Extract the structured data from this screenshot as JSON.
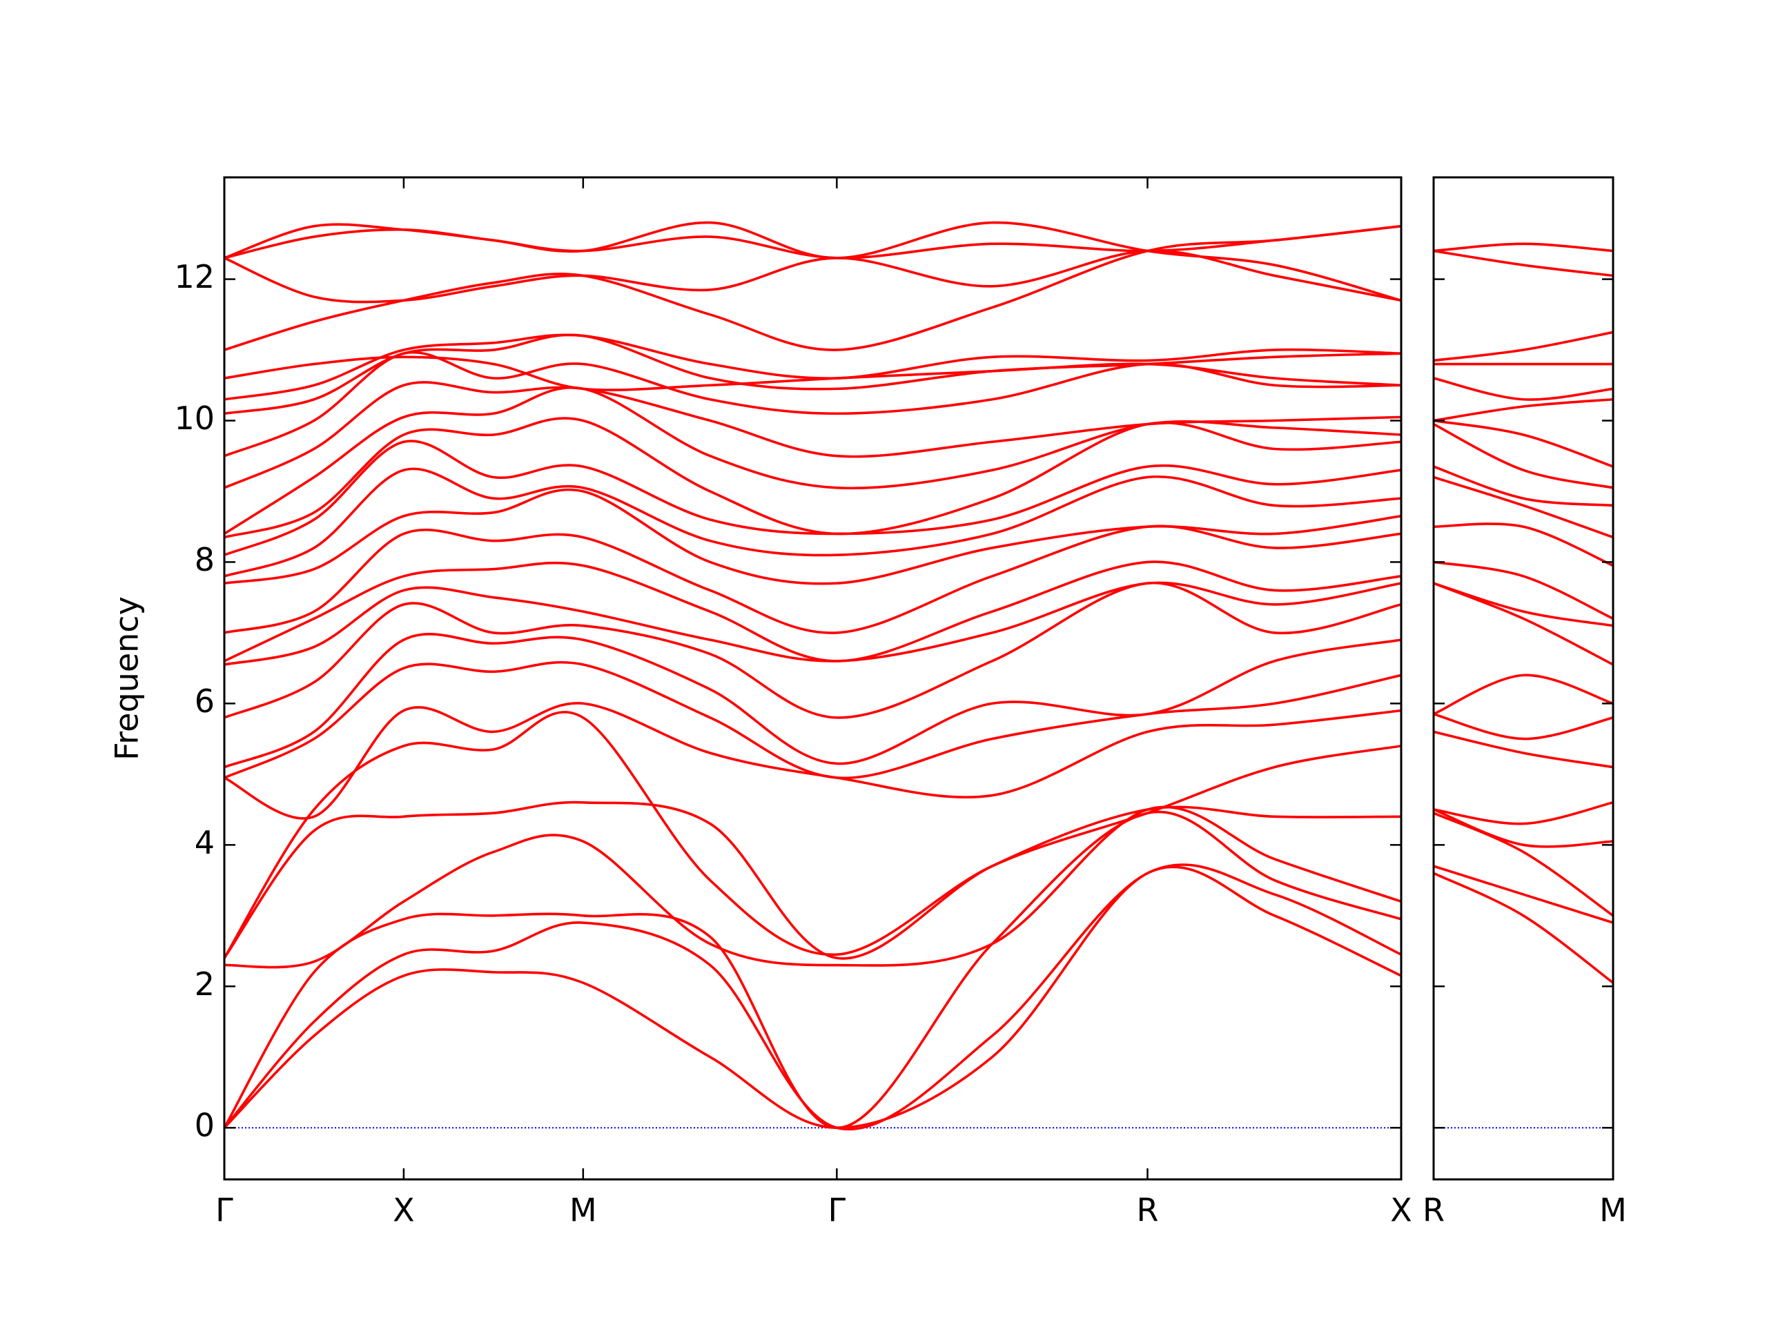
{
  "chart_data": [
    {
      "type": "line",
      "ylabel": "Frequency",
      "color": "#ff0000",
      "hline": 0,
      "hline_color": "#0000ff",
      "x": [
        0,
        0.25,
        0.5,
        0.75,
        1.0,
        1.354,
        1.707,
        2.14,
        2.573,
        2.927,
        3.28
      ],
      "xlim": [
        0,
        3.28
      ],
      "ylim": [
        -0.73,
        13.44
      ],
      "xticks": [
        {
          "value": 0,
          "label": "Γ"
        },
        {
          "value": 0.5,
          "label": "X"
        },
        {
          "value": 1.0,
          "label": "M"
        },
        {
          "value": 1.707,
          "label": "Γ"
        },
        {
          "value": 2.573,
          "label": "R"
        },
        {
          "value": 3.28,
          "label": "X"
        }
      ],
      "yticks": [
        0,
        2,
        4,
        6,
        8,
        10,
        12
      ],
      "series": [
        {
          "values": [
            0,
            1.3,
            2.15,
            2.2,
            2.05,
            1.0,
            0,
            1.0,
            3.6,
            3.0,
            2.15
          ]
        },
        {
          "values": [
            0,
            1.5,
            2.45,
            2.5,
            2.9,
            2.3,
            0,
            1.3,
            3.6,
            3.3,
            2.45
          ]
        },
        {
          "values": [
            0,
            2.2,
            2.95,
            3.0,
            3.0,
            2.7,
            0,
            2.6,
            4.45,
            3.5,
            2.95
          ]
        },
        {
          "values": [
            2.3,
            2.35,
            3.2,
            3.9,
            4.05,
            2.6,
            2.3,
            2.6,
            4.5,
            3.8,
            3.2
          ]
        },
        {
          "values": [
            2.4,
            4.2,
            4.4,
            4.45,
            4.6,
            4.3,
            2.4,
            3.7,
            4.5,
            4.4,
            4.4
          ]
        },
        {
          "values": [
            2.4,
            4.5,
            5.4,
            5.35,
            5.8,
            3.5,
            2.45,
            3.7,
            4.45,
            5.1,
            5.4
          ]
        },
        {
          "values": [
            4.95,
            4.4,
            5.9,
            5.6,
            6.0,
            5.3,
            4.95,
            4.7,
            5.6,
            5.7,
            5.9
          ]
        },
        {
          "values": [
            4.95,
            5.5,
            6.5,
            6.45,
            6.55,
            5.8,
            4.95,
            5.5,
            5.85,
            6.0,
            6.4
          ]
        },
        {
          "values": [
            5.1,
            5.6,
            6.9,
            6.85,
            6.9,
            6.2,
            5.15,
            6.0,
            5.85,
            6.6,
            6.9
          ]
        },
        {
          "values": [
            5.8,
            6.3,
            7.4,
            7.0,
            7.1,
            6.7,
            5.8,
            6.6,
            7.7,
            7.0,
            7.4
          ]
        },
        {
          "values": [
            6.55,
            6.8,
            7.6,
            7.5,
            7.3,
            6.9,
            6.6,
            7.0,
            7.7,
            7.4,
            7.7
          ]
        },
        {
          "values": [
            6.6,
            7.2,
            7.8,
            7.9,
            7.95,
            7.3,
            6.6,
            7.3,
            8.0,
            7.6,
            7.8
          ]
        },
        {
          "values": [
            7.0,
            7.3,
            8.4,
            8.3,
            8.35,
            7.6,
            7.0,
            7.8,
            8.5,
            8.2,
            8.4
          ]
        },
        {
          "values": [
            7.7,
            7.9,
            8.65,
            8.7,
            9.0,
            8.0,
            7.7,
            8.2,
            8.5,
            8.4,
            8.65
          ]
        },
        {
          "values": [
            7.8,
            8.2,
            9.3,
            8.9,
            9.05,
            8.3,
            8.1,
            8.4,
            9.2,
            8.8,
            8.9
          ]
        },
        {
          "values": [
            8.1,
            8.6,
            9.7,
            9.2,
            9.35,
            8.6,
            8.4,
            8.6,
            9.35,
            9.1,
            9.3
          ]
        },
        {
          "values": [
            8.35,
            8.7,
            9.8,
            9.8,
            10.0,
            9.0,
            8.4,
            8.9,
            9.95,
            9.6,
            9.7
          ]
        },
        {
          "values": [
            8.4,
            9.2,
            10.05,
            10.1,
            10.45,
            9.5,
            9.05,
            9.3,
            9.95,
            9.9,
            9.8
          ]
        },
        {
          "values": [
            9.05,
            9.6,
            10.5,
            10.4,
            10.45,
            10.0,
            9.5,
            9.7,
            9.95,
            10.0,
            10.05
          ]
        },
        {
          "values": [
            9.5,
            10.0,
            10.95,
            10.6,
            10.8,
            10.3,
            10.1,
            10.3,
            10.8,
            10.5,
            10.5
          ]
        },
        {
          "values": [
            10.1,
            10.3,
            10.95,
            11.0,
            11.2,
            10.6,
            10.45,
            10.7,
            10.8,
            10.9,
            10.95
          ]
        },
        {
          "values": [
            10.3,
            10.5,
            11.0,
            11.1,
            11.2,
            10.8,
            10.6,
            10.9,
            10.85,
            11.0,
            10.95
          ]
        },
        {
          "values": [
            10.6,
            10.8,
            10.9,
            10.8,
            10.45,
            10.5,
            10.6,
            10.7,
            10.8,
            10.6,
            10.5
          ]
        },
        {
          "values": [
            11.0,
            11.4,
            11.7,
            11.95,
            12.05,
            11.5,
            11.0,
            11.6,
            12.4,
            12.55,
            12.75
          ]
        },
        {
          "values": [
            12.3,
            11.75,
            11.7,
            11.9,
            12.05,
            11.85,
            12.3,
            11.9,
            12.4,
            12.05,
            11.7
          ]
        },
        {
          "values": [
            12.3,
            12.6,
            12.7,
            12.55,
            12.4,
            12.6,
            12.3,
            12.5,
            12.4,
            12.55,
            12.75
          ]
        },
        {
          "values": [
            12.3,
            12.75,
            12.7,
            12.55,
            12.4,
            12.8,
            12.3,
            12.8,
            12.4,
            12.2,
            11.7
          ]
        }
      ]
    },
    {
      "type": "line",
      "color": "#ff0000",
      "hline": 0,
      "hline_color": "#0000ff",
      "x": [
        0,
        0.25,
        0.5
      ],
      "xlim": [
        0,
        0.5
      ],
      "ylim": [
        -0.73,
        13.44
      ],
      "xticks": [
        {
          "value": 0,
          "label": "R"
        },
        {
          "value": 0.5,
          "label": "M"
        }
      ],
      "series": [
        {
          "values": [
            3.6,
            3.0,
            2.05
          ]
        },
        {
          "values": [
            3.7,
            3.3,
            2.9
          ]
        },
        {
          "values": [
            4.45,
            3.9,
            3.0
          ]
        },
        {
          "values": [
            4.5,
            4.0,
            4.05
          ]
        },
        {
          "values": [
            4.5,
            4.3,
            4.6
          ]
        },
        {
          "values": [
            5.6,
            5.3,
            5.1
          ]
        },
        {
          "values": [
            5.85,
            5.5,
            5.8
          ]
        },
        {
          "values": [
            5.85,
            6.4,
            6.0
          ]
        },
        {
          "values": [
            7.7,
            7.2,
            6.55
          ]
        },
        {
          "values": [
            7.7,
            7.3,
            7.1
          ]
        },
        {
          "values": [
            8.0,
            7.8,
            7.2
          ]
        },
        {
          "values": [
            8.5,
            8.5,
            7.95
          ]
        },
        {
          "values": [
            9.2,
            8.8,
            8.35
          ]
        },
        {
          "values": [
            9.35,
            8.9,
            8.8
          ]
        },
        {
          "values": [
            9.95,
            9.3,
            9.05
          ]
        },
        {
          "values": [
            10.0,
            9.8,
            9.35
          ]
        },
        {
          "values": [
            10.0,
            10.2,
            10.3
          ]
        },
        {
          "values": [
            10.6,
            10.3,
            10.45
          ]
        },
        {
          "values": [
            10.8,
            10.8,
            10.8
          ]
        },
        {
          "values": [
            10.85,
            11.0,
            11.25
          ]
        },
        {
          "values": [
            12.4,
            12.2,
            12.05
          ]
        },
        {
          "values": [
            12.4,
            12.5,
            12.4
          ]
        }
      ]
    }
  ]
}
